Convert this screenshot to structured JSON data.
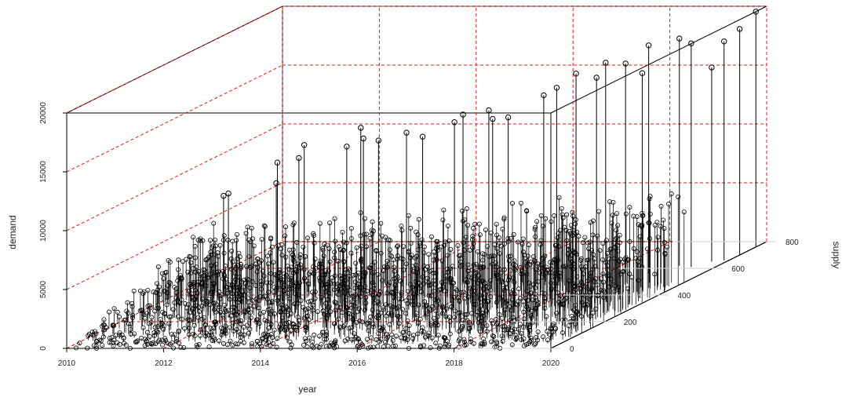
{
  "chart_data": {
    "type": "scatter",
    "style": "3d-scatter-with-vertical-drop-lines",
    "xlabel": "year",
    "ylabel": "supply",
    "zlabel": "demand",
    "x_ticks": [
      "2010",
      "2012",
      "2014",
      "2016",
      "2018",
      "2020"
    ],
    "y_ticks": [
      "0",
      "200",
      "400",
      "600",
      "800"
    ],
    "z_ticks": [
      "0",
      "5000",
      "10000",
      "15000",
      "20000"
    ],
    "xlim": [
      2010,
      2020
    ],
    "ylim": [
      0,
      800
    ],
    "zlim": [
      0,
      20000
    ],
    "grid": true,
    "reference_plane_color": "#e31a1c",
    "point_color": "#000000",
    "series": [
      {
        "points": [
          [
            2010.9,
            420,
            8200
          ],
          [
            2011.0,
            420,
            8400
          ],
          [
            2011.9,
            440,
            10800
          ],
          [
            2012.1,
            400,
            9500
          ],
          [
            2012.4,
            430,
            11300
          ],
          [
            2012.9,
            360,
            13200
          ],
          [
            2013.4,
            480,
            13300
          ],
          [
            2013.5,
            410,
            12500
          ],
          [
            2013.9,
            400,
            13300
          ],
          [
            2014.1,
            420,
            12900
          ],
          [
            2014.4,
            470,
            13000
          ],
          [
            2014.9,
            440,
            13000
          ],
          [
            2015.0,
            540,
            13100
          ],
          [
            2015.4,
            500,
            14200
          ],
          [
            2015.9,
            520,
            13600
          ],
          [
            2016.1,
            470,
            14900
          ],
          [
            2016.5,
            470,
            14300
          ],
          [
            2016.9,
            530,
            15500
          ],
          [
            2017.0,
            560,
            15800
          ],
          [
            2017.4,
            560,
            17000
          ],
          [
            2017.6,
            600,
            16200
          ],
          [
            2017.9,
            580,
            17700
          ],
          [
            2018.2,
            600,
            17400
          ],
          [
            2018.6,
            590,
            16700
          ],
          [
            2018.9,
            560,
            19400
          ],
          [
            2019.2,
            620,
            19300
          ],
          [
            2019.5,
            610,
            19000
          ],
          [
            2019.7,
            650,
            16500
          ],
          [
            2019.9,
            660,
            18600
          ],
          [
            2020.0,
            700,
            19200
          ],
          [
            2020.0,
            760,
            20000
          ]
        ]
      }
    ]
  }
}
